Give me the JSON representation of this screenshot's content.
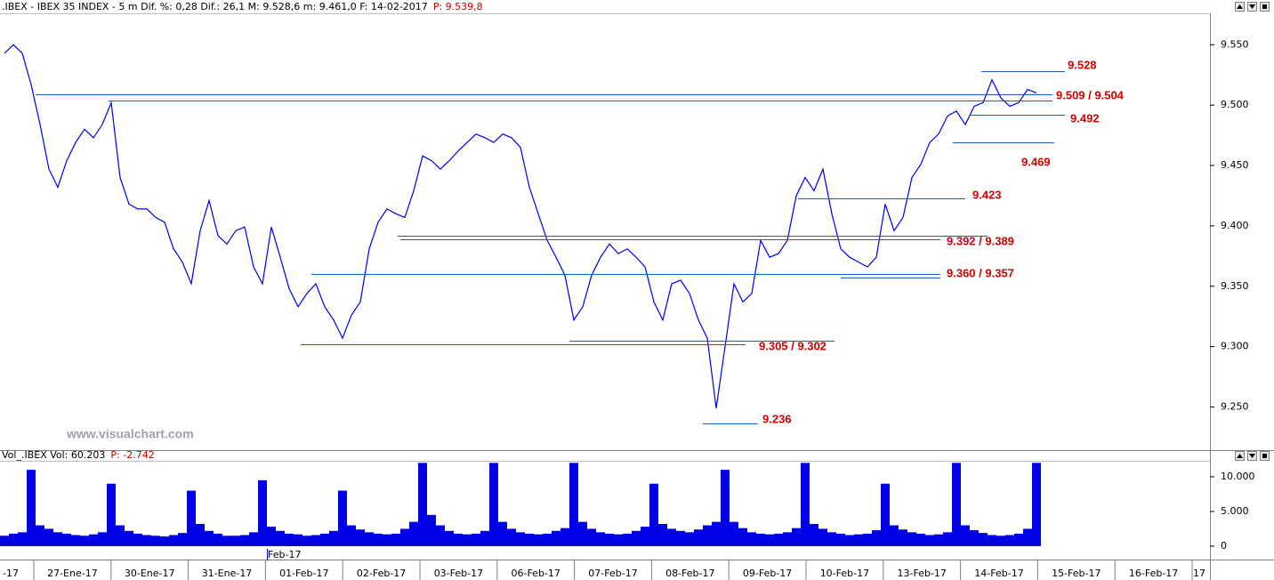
{
  "x_axis": {
    "categories": [
      "-17",
      "27-Ene-17",
      "30-Ene-17",
      "31-Ene-17",
      "01-Feb-17",
      "02-Feb-17",
      "03-Feb-17",
      "06-Feb-17",
      "07-Feb-17",
      "08-Feb-17",
      "09-Feb-17",
      "10-Feb-17",
      "13-Feb-17",
      "14-Feb-17",
      "15-Feb-17",
      "16-Feb-17",
      "17"
    ],
    "month_label": "Feb-17"
  },
  "chart_data": [
    {
      "type": "line",
      "title": ".IBEX - IBEX 35 INDEX - 5 m Dif. %: 0,28 Dif.: 26,1 M: 9.528,6 m: 9.461,0 F: 14-02-2017",
      "title_extra": "P: 9.539,8",
      "watermark": "www.visualchart.com",
      "ylim": [
        9215,
        9576
      ],
      "yticks": [
        {
          "value": 9550,
          "label": "9.550"
        },
        {
          "value": 9500,
          "label": "9.500"
        },
        {
          "value": 9450,
          "label": "9.450"
        },
        {
          "value": 9400,
          "label": "9.400"
        },
        {
          "value": 9350,
          "label": "9.350"
        },
        {
          "value": 9300,
          "label": "9.300"
        },
        {
          "value": 9250,
          "label": "9.250"
        }
      ],
      "series": [
        {
          "color": "#0000e6",
          "values": [
            9543,
            9550,
            9543,
            9517,
            9484,
            9447,
            9432,
            9454,
            9469,
            9480,
            9473,
            9484,
            9502,
            9440,
            9418,
            9414,
            9414,
            9407,
            9403,
            9381,
            9370,
            9352,
            9396,
            9421,
            9392,
            9385,
            9396,
            9399,
            9366,
            9352,
            9399,
            9374,
            9348,
            9333,
            9344,
            9352,
            9333,
            9322,
            9307,
            9326,
            9337,
            9381,
            9403,
            9414,
            9410,
            9407,
            9429,
            9458,
            9454,
            9447,
            9454,
            9462,
            9469,
            9476,
            9473,
            9469,
            9476,
            9473,
            9465,
            9432,
            9410,
            9388,
            9374,
            9359,
            9322,
            9333,
            9359,
            9374,
            9385,
            9377,
            9381,
            9374,
            9366,
            9337,
            9322,
            9352,
            9355,
            9344,
            9322,
            9307,
            9249,
            9300,
            9352,
            9337,
            9344,
            9388,
            9374,
            9377,
            9388,
            9425,
            9440,
            9429,
            9447,
            9410,
            9381,
            9374,
            9370,
            9366,
            9374,
            9418,
            9396,
            9407,
            9440,
            9451,
            9469,
            9476,
            9491,
            9495,
            9484,
            9499,
            9502,
            9521,
            9506,
            9499,
            9502,
            9513,
            9510
          ]
        }
      ],
      "level_color": "#1a5fb4",
      "levels": [
        {
          "label": "9.528",
          "values": [
            9528
          ]
        },
        {
          "label": "9.509 / 9.504",
          "values": [
            9509,
            9504
          ]
        },
        {
          "label": "9.492",
          "values": [
            9492
          ]
        },
        {
          "label": "9.469",
          "values": [
            9469
          ]
        },
        {
          "label": "9.423",
          "values": [
            9423
          ]
        },
        {
          "label": "9.392 / 9.389",
          "values": [
            9392,
            9389
          ]
        },
        {
          "label": "9.360 / 9.357",
          "values": [
            9360,
            9357
          ]
        },
        {
          "label": "9.305 / 9.302",
          "values": [
            9305,
            9302
          ]
        },
        {
          "label": "9.236",
          "values": [
            9236
          ]
        }
      ]
    },
    {
      "type": "bar",
      "title": "Vol_.IBEX Vol: 60.203",
      "title_extra": "P: -2.742",
      "ylim": [
        -1800,
        12300
      ],
      "yticks": [
        {
          "value": 10000,
          "label": "10.000"
        },
        {
          "value": 5000,
          "label": "5.000"
        },
        0
      ],
      "color": "#0000e6",
      "values": [
        1500,
        1800,
        2000,
        11000,
        3000,
        2500,
        2000,
        1800,
        1600,
        1500,
        1700,
        2000,
        9000,
        3000,
        2200,
        1800,
        1600,
        1500,
        1400,
        1600,
        1900,
        8000,
        3200,
        2200,
        1800,
        1500,
        1500,
        1600,
        2000,
        9500,
        2800,
        2200,
        1800,
        1700,
        1500,
        1600,
        1800,
        2200,
        8000,
        3000,
        2400,
        2000,
        1800,
        1700,
        1800,
        2500,
        3500,
        12000,
        4500,
        3000,
        2200,
        1800,
        1700,
        1800,
        2200,
        12000,
        3500,
        2500,
        2000,
        1800,
        1700,
        1800,
        2200,
        2600,
        12000,
        3500,
        2500,
        2000,
        1800,
        1700,
        1800,
        2200,
        2800,
        9000,
        3200,
        2500,
        2200,
        2000,
        2400,
        3000,
        3500,
        11000,
        3500,
        2600,
        2000,
        1800,
        1700,
        1800,
        2000,
        2600,
        12000,
        3200,
        2500,
        2000,
        1800,
        1600,
        1700,
        1800,
        2300,
        9000,
        3000,
        2400,
        2000,
        1800,
        1600,
        1700,
        2000,
        12000,
        3000,
        2300,
        1900,
        1600,
        1500,
        1600,
        1800,
        2500,
        12000
      ]
    }
  ]
}
